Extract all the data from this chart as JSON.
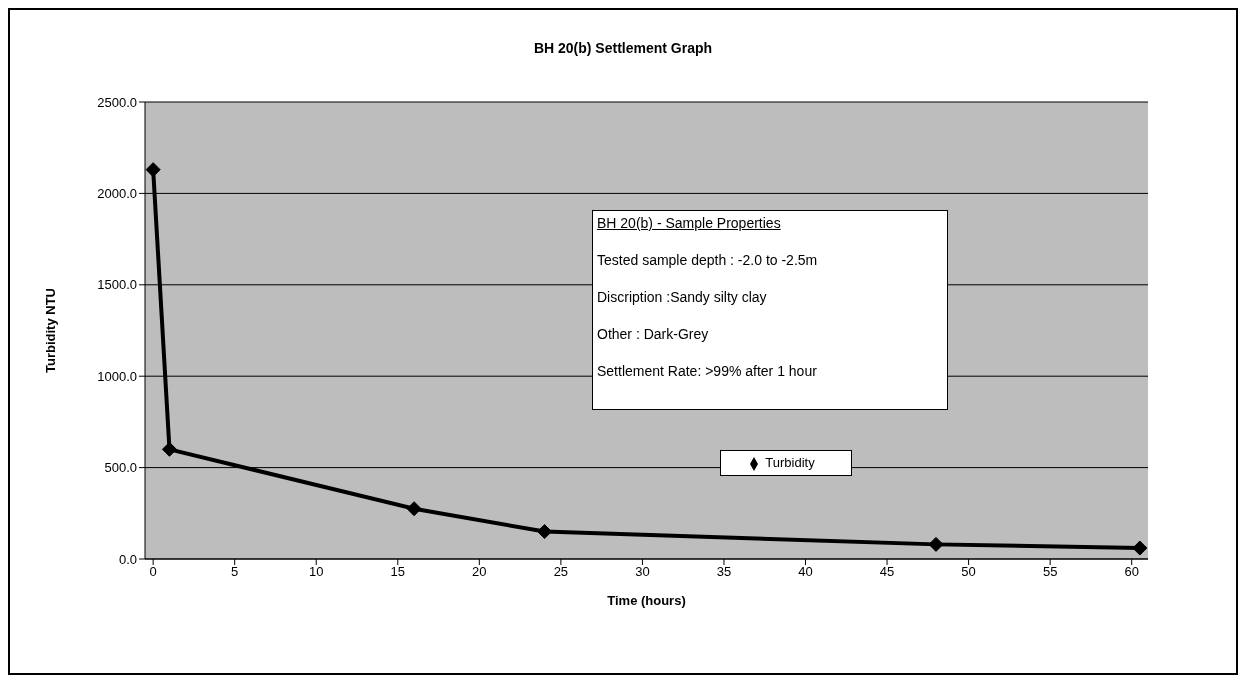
{
  "chart_data": {
    "type": "line",
    "title": "BH 20(b) Settlement Graph",
    "xlabel": "Time (hours)",
    "ylabel": "Turbidity NTU",
    "x": [
      0,
      1,
      16,
      24,
      48,
      60.5
    ],
    "series": [
      {
        "name": "Turbidity",
        "color": "#000000",
        "values": [
          2130,
          600,
          275,
          150,
          80,
          60
        ]
      }
    ],
    "xlim": [
      -0.5,
      61
    ],
    "xticks": [
      0,
      5,
      10,
      15,
      20,
      25,
      30,
      35,
      40,
      45,
      50,
      55,
      60
    ],
    "ylim": [
      0,
      2500
    ],
    "yticks": [
      {
        "value": 0,
        "label": "0.0"
      },
      {
        "value": 500,
        "label": "500.0"
      },
      {
        "value": 1000,
        "label": "1000.0"
      },
      {
        "value": 1500,
        "label": "1500.0"
      },
      {
        "value": 2000,
        "label": "2000.0"
      },
      {
        "value": 2500,
        "label": "2500.0"
      }
    ],
    "grid": "y",
    "legend": "center",
    "marker": "diamond",
    "line_style": "solid",
    "annotations": [
      "BH 20(b) - Sample Properties",
      "Tested sample depth : -2.0 to -2.5m",
      "Discription :Sandy silty clay",
      "Other : Dark-Grey",
      "Settlement Rate: >99% after 1 hour"
    ]
  }
}
